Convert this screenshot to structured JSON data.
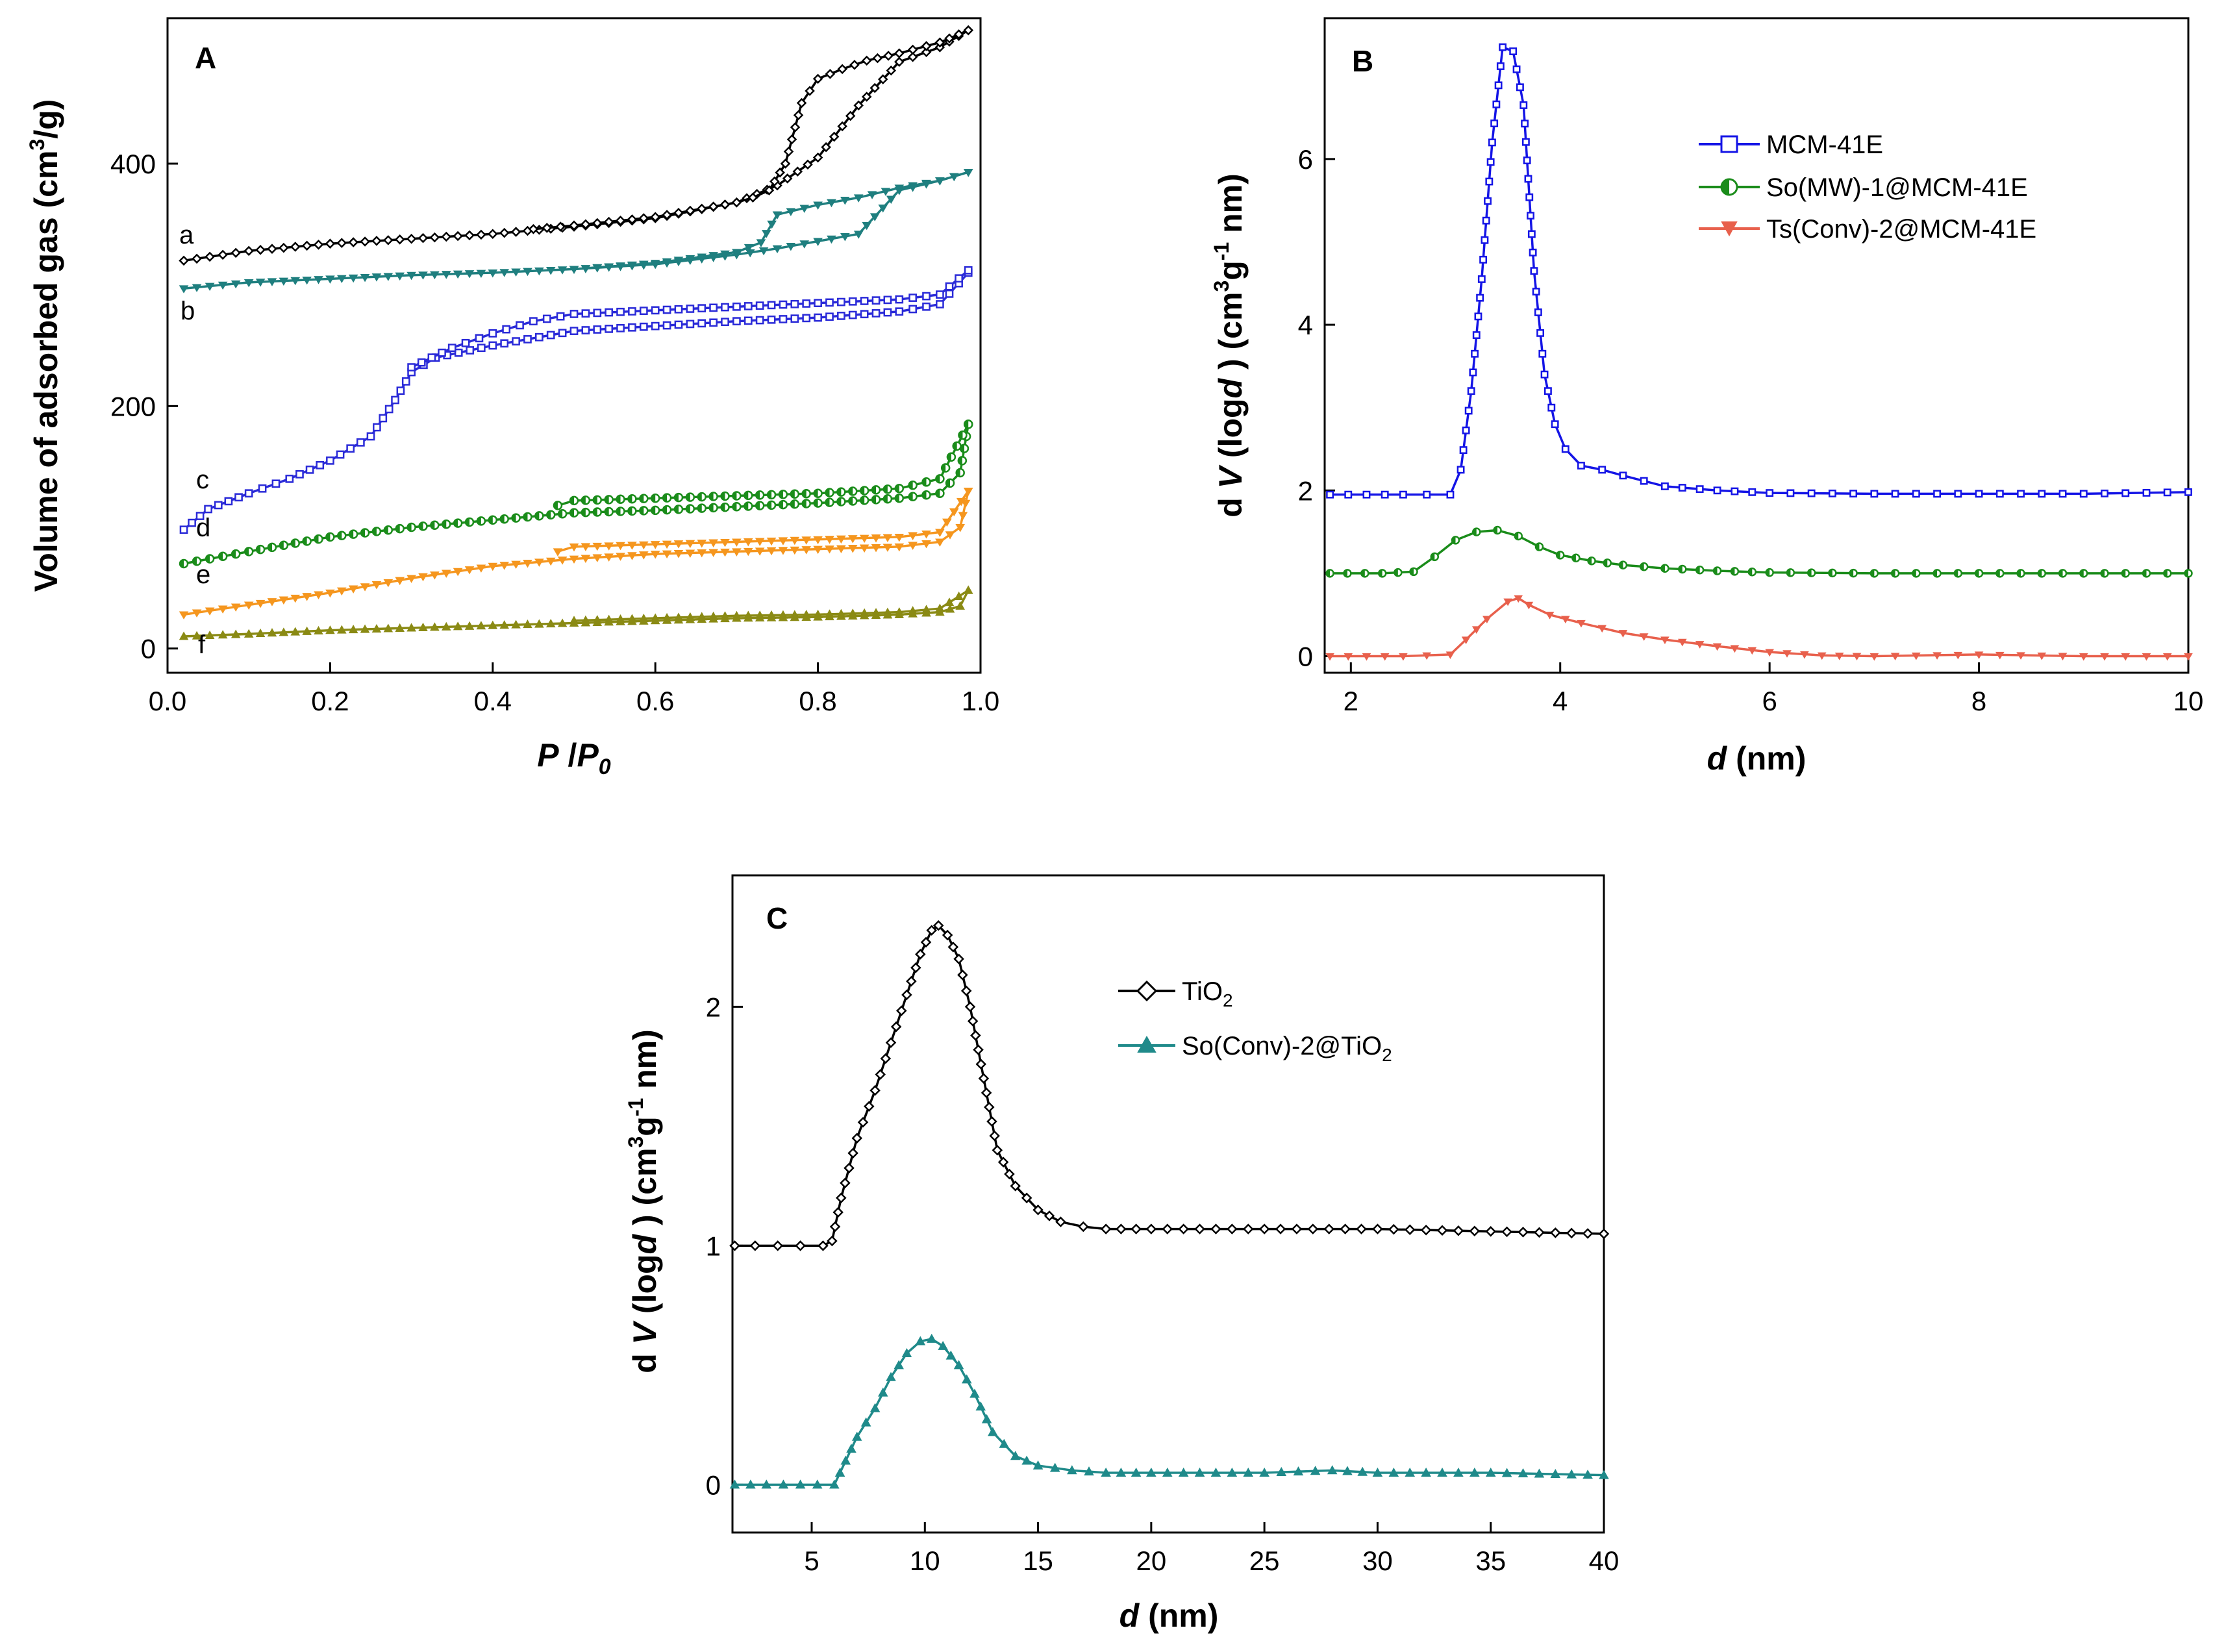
{
  "chart_data": [
    {
      "panel": "A",
      "type": "line",
      "xlabel_main": "P",
      "xlabel_div": " /",
      "xlabel_p0": "P",
      "xlabel_sub": "0",
      "ylabel_main": "Volume of adsorbed gas (cm",
      "ylabel_sup": "3",
      "ylabel_end": "/g)",
      "xlim": [
        0.0,
        1.0
      ],
      "ylim": [
        -20,
        520
      ],
      "xticks": [
        0.0,
        0.2,
        0.4,
        0.6,
        0.8,
        1.0
      ],
      "xtick_labels": [
        "0.0",
        "0.2",
        "0.4",
        "0.6",
        "0.8",
        "1.0"
      ],
      "yticks": [
        0,
        200,
        400
      ],
      "ytick_labels": [
        "0",
        "200",
        "400"
      ],
      "series": [
        {
          "name": "a",
          "color": "#000000",
          "marker": "diamond",
          "adsorption": {
            "x": [
              0.02,
              0.1,
              0.2,
              0.3,
              0.4,
              0.5,
              0.6,
              0.7,
              0.75,
              0.8,
              0.85,
              0.9,
              0.95,
              0.985
            ],
            "y": [
              320,
              328,
              334,
              338,
              342,
              348,
              355,
              368,
              382,
              405,
              448,
              484,
              496,
              510
            ]
          },
          "desorption": {
            "x": [
              0.985,
              0.95,
              0.9,
              0.86,
              0.83,
              0.8,
              0.78,
              0.76,
              0.74,
              0.72,
              0.7,
              0.6,
              0.5,
              0.45
            ],
            "y": [
              510,
              500,
              491,
              485,
              478,
              470,
              450,
              400,
              378,
              372,
              368,
              356,
              349,
              346
            ]
          }
        },
        {
          "name": "b",
          "color": "#1f7f7f",
          "marker": "tri-down",
          "adsorption": {
            "x": [
              0.02,
              0.1,
              0.2,
              0.3,
              0.4,
              0.5,
              0.6,
              0.7,
              0.75,
              0.8,
              0.85,
              0.9,
              0.95,
              0.985
            ],
            "y": [
              297,
              302,
              305,
              308,
              310,
              313,
              317,
              325,
              330,
              336,
              342,
              378,
              386,
              393
            ]
          },
          "desorption": {
            "x": [
              0.985,
              0.95,
              0.9,
              0.85,
              0.8,
              0.75,
              0.73,
              0.7,
              0.6,
              0.5
            ],
            "y": [
              393,
              386,
              380,
              372,
              366,
              358,
              335,
              327,
              318,
              313
            ]
          }
        },
        {
          "name": "c",
          "color": "#2a2ad8",
          "marker": "square",
          "adsorption": {
            "x": [
              0.02,
              0.05,
              0.1,
              0.15,
              0.2,
              0.25,
              0.28,
              0.3,
              0.33,
              0.4,
              0.5,
              0.6,
              0.7,
              0.8,
              0.9,
              0.95,
              0.985
            ],
            "y": [
              98,
              115,
              128,
              140,
              155,
              175,
              205,
              228,
              240,
              250,
              262,
              266,
              270,
              273,
              278,
              284,
              310
            ]
          },
          "desorption": {
            "x": [
              0.985,
              0.95,
              0.9,
              0.8,
              0.7,
              0.6,
              0.5,
              0.45,
              0.4,
              0.35,
              0.3
            ],
            "y": [
              312,
              292,
              288,
              285,
              282,
              279,
              276,
              270,
              260,
              248,
              232
            ]
          }
        },
        {
          "name": "d",
          "color": "#1a8c1a",
          "marker": "half-circle",
          "adsorption": {
            "x": [
              0.02,
              0.1,
              0.2,
              0.3,
              0.4,
              0.5,
              0.6,
              0.7,
              0.8,
              0.9,
              0.95,
              0.975,
              0.985
            ],
            "y": [
              70,
              80,
              92,
              100,
              106,
              112,
              114,
              117,
              120,
              124,
              128,
              145,
              185
            ]
          },
          "desorption": {
            "x": [
              0.985,
              0.95,
              0.9,
              0.8,
              0.7,
              0.6,
              0.5,
              0.48
            ],
            "y": [
              185,
              140,
              132,
              128,
              126,
              124,
              122,
              118
            ]
          }
        },
        {
          "name": "e",
          "color": "#f5961e",
          "marker": "tri-down",
          "adsorption": {
            "x": [
              0.02,
              0.1,
              0.2,
              0.3,
              0.4,
              0.5,
              0.6,
              0.7,
              0.8,
              0.9,
              0.95,
              0.975,
              0.985
            ],
            "y": [
              28,
              36,
              46,
              58,
              68,
              74,
              78,
              80,
              82,
              84,
              88,
              100,
              130
            ]
          },
          "desorption": {
            "x": [
              0.985,
              0.95,
              0.9,
              0.8,
              0.7,
              0.6,
              0.5,
              0.48
            ],
            "y": [
              130,
              96,
              92,
              90,
              88,
              86,
              84,
              80
            ]
          }
        },
        {
          "name": "f",
          "color": "#8a8a14",
          "marker": "triangle",
          "adsorption": {
            "x": [
              0.02,
              0.1,
              0.2,
              0.3,
              0.4,
              0.5,
              0.6,
              0.7,
              0.8,
              0.9,
              0.95,
              0.975,
              0.985
            ],
            "y": [
              10,
              12,
              15,
              17,
              19,
              21,
              23,
              25,
              26,
              28,
              30,
              35,
              48
            ]
          },
          "desorption": {
            "x": [
              0.985,
              0.95,
              0.9,
              0.8,
              0.7,
              0.6,
              0.5
            ],
            "y": [
              48,
              33,
              30,
              28,
              27,
              25,
              23
            ]
          }
        }
      ]
    },
    {
      "panel": "B",
      "type": "line",
      "xlabel_main": "d",
      "xlabel_end": " (nm)",
      "ylabel_d": "d",
      "ylabel_v": "V",
      "ylabel_log": " (log",
      "ylabel_d2": "d",
      "ylabel_close": " ) (cm",
      "ylabel_sup1": "3",
      "ylabel_g": "g",
      "ylabel_sup2": "-1",
      "ylabel_nm": " nm)",
      "xlim": [
        1.75,
        10
      ],
      "ylim": [
        -0.2,
        7.7
      ],
      "xticks": [
        2,
        4,
        6,
        8,
        10
      ],
      "xtick_labels": [
        "2",
        "4",
        "6",
        "8",
        "10"
      ],
      "yticks": [
        0,
        2,
        4,
        6
      ],
      "ytick_labels": [
        "0",
        "2",
        "4",
        "6"
      ],
      "series": [
        {
          "name": "MCM-41E",
          "color": "#1414e6",
          "marker": "square",
          "x": [
            1.8,
            2.5,
            2.95,
            3.05,
            3.15,
            3.25,
            3.35,
            3.45,
            3.55,
            3.65,
            3.75,
            3.85,
            3.95,
            4.05,
            4.2,
            4.4,
            4.6,
            5.0,
            5.5,
            6.0,
            7.0,
            8.0,
            9.0,
            10.0
          ],
          "y": [
            1.95,
            1.95,
            1.95,
            2.25,
            3.2,
            4.55,
            6.2,
            7.35,
            7.3,
            6.65,
            4.65,
            3.4,
            2.8,
            2.5,
            2.3,
            2.25,
            2.18,
            2.05,
            2.0,
            1.97,
            1.96,
            1.96,
            1.96,
            1.98
          ]
        },
        {
          "name": "So(MW)-1@MCM-41E",
          "color": "#1a8c1a",
          "marker": "half-circle",
          "x": [
            1.8,
            2.3,
            2.6,
            2.8,
            3.0,
            3.2,
            3.4,
            3.6,
            3.8,
            4.0,
            4.3,
            4.6,
            5.0,
            5.5,
            6.0,
            7.0,
            8.0,
            9.0,
            10.0
          ],
          "y": [
            1.0,
            1.0,
            1.02,
            1.2,
            1.4,
            1.5,
            1.52,
            1.45,
            1.32,
            1.22,
            1.15,
            1.1,
            1.06,
            1.03,
            1.01,
            1.0,
            1.0,
            1.0,
            1.0
          ]
        },
        {
          "name": "Ts(Conv)-2@MCM-41E",
          "color": "#e8604c",
          "marker": "tri-down",
          "x": [
            1.8,
            2.5,
            2.95,
            3.1,
            3.3,
            3.5,
            3.6,
            3.7,
            3.9,
            4.2,
            4.6,
            5.0,
            5.5,
            6.0,
            6.5,
            7.0,
            8.0,
            9.0,
            10.0
          ],
          "y": [
            0.0,
            0.0,
            0.02,
            0.2,
            0.45,
            0.66,
            0.7,
            0.62,
            0.5,
            0.4,
            0.28,
            0.2,
            0.12,
            0.05,
            0.01,
            0.0,
            0.02,
            0.0,
            0.0
          ]
        }
      ]
    },
    {
      "panel": "C",
      "type": "line",
      "xlabel_main": "d",
      "xlabel_end": " (nm)",
      "ylabel_d": "d",
      "ylabel_v": "V",
      "ylabel_log": " (log",
      "ylabel_d2": "d",
      "ylabel_close": " ) (cm",
      "ylabel_sup1": "3",
      "ylabel_g": "g",
      "ylabel_sup2": "-1",
      "ylabel_nm": " nm)",
      "xlim": [
        1.5,
        40
      ],
      "ylim": [
        -0.2,
        2.55
      ],
      "xticks": [
        5,
        10,
        15,
        20,
        25,
        30,
        35,
        40
      ],
      "xtick_labels": [
        "5",
        "10",
        "15",
        "20",
        "25",
        "30",
        "35",
        "40"
      ],
      "yticks": [
        0,
        1,
        2
      ],
      "ytick_labels": [
        "0",
        "1",
        "2"
      ],
      "series": [
        {
          "name_main": "TiO",
          "name_sub": "2",
          "color": "#000000",
          "marker": "diamond",
          "x": [
            1.6,
            2.5,
            3.5,
            4.5,
            5.5,
            5.9,
            6.3,
            7.0,
            7.8,
            8.5,
            9.2,
            9.8,
            10.3,
            10.6,
            11.0,
            11.5,
            12.0,
            12.6,
            13.2,
            14.0,
            15.0,
            16.0,
            17.0,
            18.0,
            20.0,
            25.0,
            30.0,
            35.0,
            40.0
          ],
          "y": [
            1.0,
            1.0,
            1.0,
            1.0,
            1.0,
            1.02,
            1.2,
            1.45,
            1.65,
            1.85,
            2.05,
            2.22,
            2.32,
            2.34,
            2.3,
            2.2,
            2.0,
            1.7,
            1.4,
            1.25,
            1.15,
            1.1,
            1.08,
            1.07,
            1.07,
            1.07,
            1.07,
            1.06,
            1.05
          ]
        },
        {
          "name_main": "So(Conv)-2@TiO",
          "name_sub": "2",
          "color": "#1f8a8a",
          "marker": "triangle",
          "x": [
            1.6,
            3.0,
            4.5,
            6.0,
            6.5,
            7.0,
            7.8,
            8.5,
            9.2,
            9.8,
            10.3,
            10.8,
            11.5,
            12.2,
            13.0,
            14.0,
            15.0,
            16.5,
            18.0,
            20.0,
            25.0,
            28.0,
            30.0,
            35.0,
            40.0
          ],
          "y": [
            0.0,
            0.0,
            0.0,
            0.0,
            0.1,
            0.2,
            0.32,
            0.45,
            0.55,
            0.6,
            0.61,
            0.58,
            0.5,
            0.38,
            0.22,
            0.12,
            0.08,
            0.06,
            0.05,
            0.05,
            0.05,
            0.06,
            0.05,
            0.05,
            0.04
          ]
        }
      ]
    }
  ],
  "panel_labels": {
    "a": "A",
    "b": "B",
    "c": "C"
  },
  "curve_labels": [
    "a",
    "b",
    "c",
    "d",
    "e",
    "f"
  ]
}
